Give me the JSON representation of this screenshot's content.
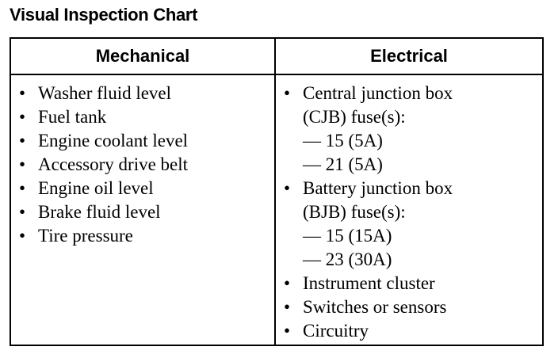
{
  "title": "Visual Inspection Chart",
  "headers": [
    "Mechanical",
    "Electrical"
  ],
  "mechanical": [
    "Washer fluid level",
    "Fuel tank",
    "Engine coolant level",
    "Accessory drive belt",
    "Engine oil level",
    "Brake fluid level",
    "Tire pressure"
  ],
  "electrical": [
    {
      "text": "Central junction box",
      "type": "bullet"
    },
    {
      "text": "(CJB) fuse(s):",
      "type": "cont"
    },
    {
      "text": "— 15 (5A)",
      "type": "cont"
    },
    {
      "text": "— 21 (5A)",
      "type": "cont"
    },
    {
      "text": "Battery junction box",
      "type": "bullet"
    },
    {
      "text": "(BJB) fuse(s):",
      "type": "cont"
    },
    {
      "text": "— 15 (15A)",
      "type": "cont"
    },
    {
      "text": "— 23 (30A)",
      "type": "cont"
    },
    {
      "text": "Instrument cluster",
      "type": "bullet"
    },
    {
      "text": "Switches or sensors",
      "type": "bullet"
    },
    {
      "text": "Circuitry",
      "type": "bullet"
    }
  ]
}
